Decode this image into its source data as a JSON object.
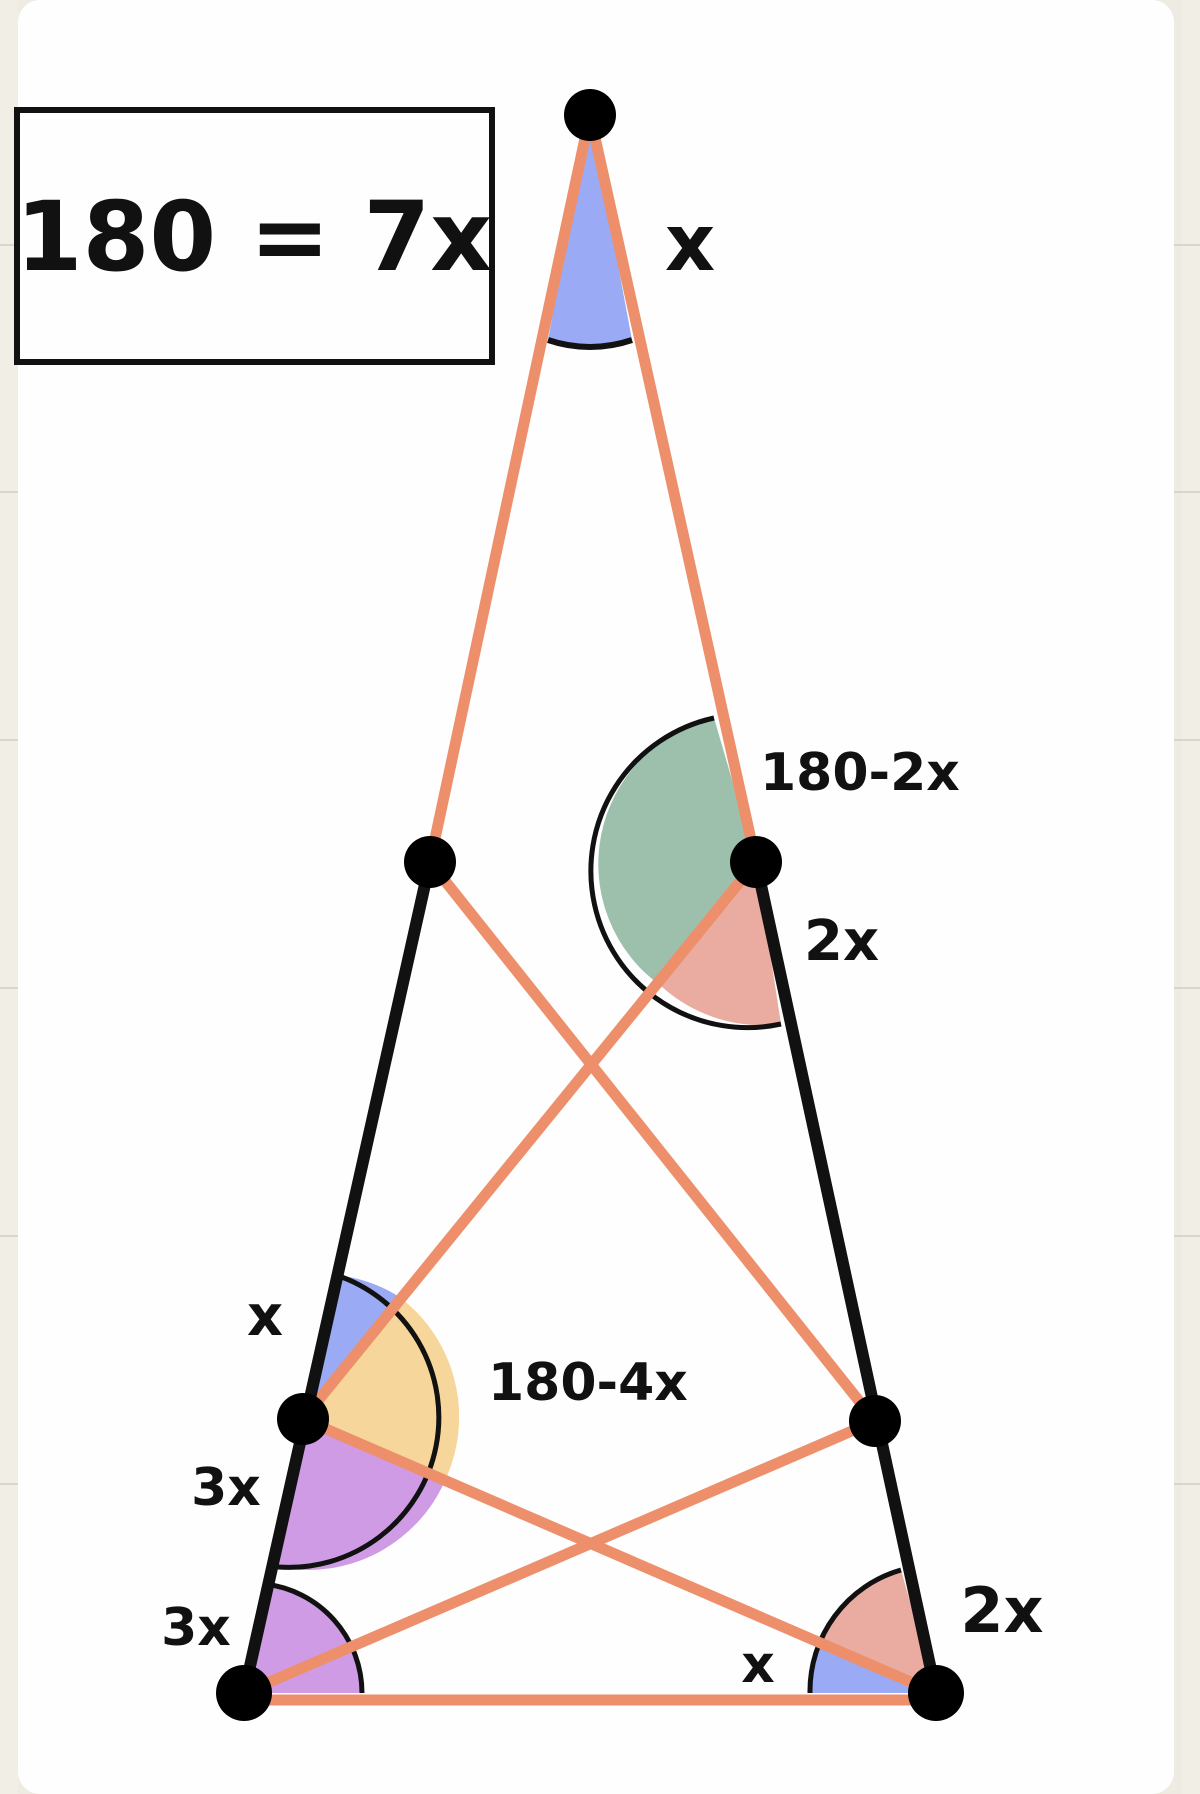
{
  "equation_box": {
    "text": "180 = 7x"
  },
  "angle_labels": {
    "apex": "x",
    "upper_right_exterior": "180-2x",
    "upper_right_interior": "2x",
    "left_mid_top": "x",
    "left_mid_center": "180-4x",
    "left_mid_bottom": "3x",
    "bottom_left": "3x",
    "bottom_right_lower": "x",
    "bottom_right_upper": "2x"
  },
  "colors": {
    "triangle_edge": "#111111",
    "segment": "#ee8f6c",
    "blue_angle": "#9aaaf5",
    "green_angle": "#9dc0ad",
    "pink_angle": "#eaaca0",
    "yellow_angle": "#f6d69a",
    "purple_angle": "#cf9be5"
  }
}
